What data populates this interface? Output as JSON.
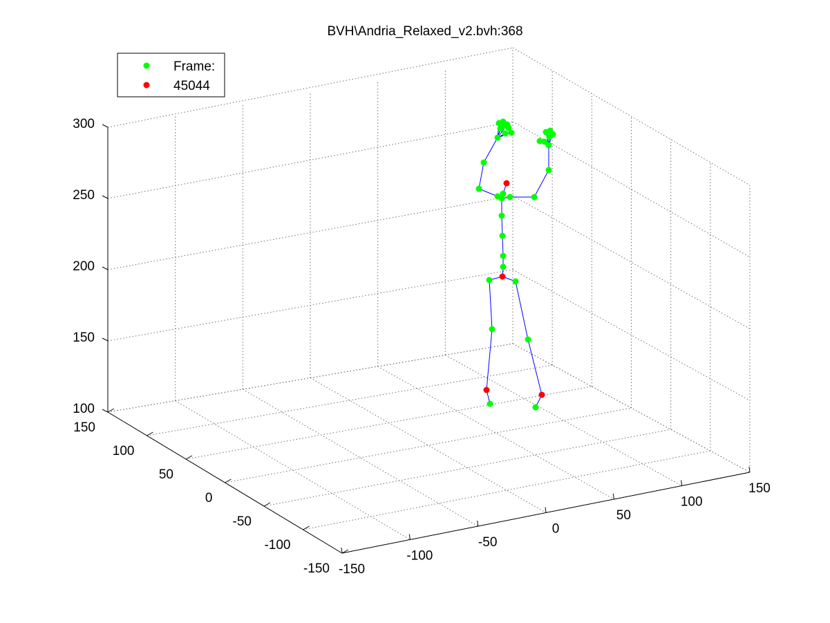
{
  "chart_data": {
    "type": "scatter",
    "title": "BVH\\Andria_Relaxed_v2.bvh:368",
    "legend": {
      "placement": "top-left",
      "entries": [
        {
          "label": "Frame:",
          "color": "#00ff00"
        },
        {
          "label": "45044",
          "color": "#ff0000"
        }
      ]
    },
    "axes": {
      "x": {
        "ticks": [
          "-150",
          "-100",
          "-50",
          "0",
          "50",
          "100",
          "150"
        ]
      },
      "y": {
        "ticks": [
          "-150",
          "-100",
          "-50",
          "0",
          "50",
          "100",
          "150"
        ]
      },
      "z": {
        "ticks": [
          "100",
          "150",
          "200",
          "250",
          "300"
        ]
      }
    },
    "grid": true,
    "colors": {
      "joint": "#00ff00",
      "highlight": "#ff0000",
      "bone": "#0000ff"
    },
    "joints": [
      {
        "id": "hip",
        "x": 727,
        "y": 400,
        "highlight": true
      },
      {
        "id": "lhip",
        "x": 708,
        "y": 405
      },
      {
        "id": "lknee",
        "x": 712,
        "y": 476
      },
      {
        "id": "lankle",
        "x": 704,
        "y": 564,
        "highlight": true
      },
      {
        "id": "ltoe",
        "x": 709,
        "y": 584
      },
      {
        "id": "rhip",
        "x": 746,
        "y": 407
      },
      {
        "id": "rknee",
        "x": 764,
        "y": 491
      },
      {
        "id": "rankle",
        "x": 784,
        "y": 571,
        "highlight": true
      },
      {
        "id": "rtoe",
        "x": 775,
        "y": 589
      },
      {
        "id": "spine1",
        "x": 728,
        "y": 386
      },
      {
        "id": "spine2",
        "x": 728,
        "y": 370
      },
      {
        "id": "spine3",
        "x": 727,
        "y": 341
      },
      {
        "id": "spine4",
        "x": 726,
        "y": 312
      },
      {
        "id": "chest",
        "x": 726,
        "y": 287
      },
      {
        "id": "neck",
        "x": 728,
        "y": 280
      },
      {
        "id": "head",
        "x": 733,
        "y": 265,
        "highlight": true
      },
      {
        "id": "lclav",
        "x": 720,
        "y": 284
      },
      {
        "id": "lshoulder",
        "x": 693,
        "y": 273
      },
      {
        "id": "lelbow",
        "x": 700,
        "y": 235
      },
      {
        "id": "lwrist",
        "x": 720,
        "y": 199
      },
      {
        "id": "lhand1",
        "x": 722,
        "y": 178
      },
      {
        "id": "lhand2",
        "x": 728,
        "y": 176
      },
      {
        "id": "lhand3",
        "x": 734,
        "y": 180
      },
      {
        "id": "lhand4",
        "x": 724,
        "y": 186
      },
      {
        "id": "lhand5",
        "x": 731,
        "y": 193
      },
      {
        "id": "lhand6",
        "x": 740,
        "y": 192
      },
      {
        "id": "lhand7",
        "x": 736,
        "y": 185
      },
      {
        "id": "lhand8",
        "x": 727,
        "y": 183
      },
      {
        "id": "rclav",
        "x": 738,
        "y": 285
      },
      {
        "id": "rshoulder",
        "x": 773,
        "y": 285
      },
      {
        "id": "relbow",
        "x": 794,
        "y": 246
      },
      {
        "id": "rwrist",
        "x": 794,
        "y": 210
      },
      {
        "id": "rhand1",
        "x": 781,
        "y": 204
      },
      {
        "id": "rhand2",
        "x": 788,
        "y": 205
      },
      {
        "id": "rhand3",
        "x": 790,
        "y": 191
      },
      {
        "id": "rhand4",
        "x": 796,
        "y": 189
      },
      {
        "id": "rhand5",
        "x": 800,
        "y": 194
      },
      {
        "id": "rhand6",
        "x": 795,
        "y": 198
      }
    ],
    "bones": [
      [
        "hip",
        "spine1"
      ],
      [
        "spine1",
        "spine2"
      ],
      [
        "spine2",
        "spine3"
      ],
      [
        "spine3",
        "spine4"
      ],
      [
        "spine4",
        "chest"
      ],
      [
        "chest",
        "neck"
      ],
      [
        "neck",
        "head"
      ],
      [
        "hip",
        "lhip"
      ],
      [
        "lhip",
        "lknee"
      ],
      [
        "lknee",
        "lankle"
      ],
      [
        "lankle",
        "ltoe"
      ],
      [
        "hip",
        "rhip"
      ],
      [
        "rhip",
        "rknee"
      ],
      [
        "rknee",
        "rankle"
      ],
      [
        "rankle",
        "rtoe"
      ],
      [
        "chest",
        "lclav"
      ],
      [
        "lclav",
        "lshoulder"
      ],
      [
        "lshoulder",
        "lelbow"
      ],
      [
        "lelbow",
        "lwrist"
      ],
      [
        "lwrist",
        "lhand1"
      ],
      [
        "lwrist",
        "lhand2"
      ],
      [
        "lwrist",
        "lhand3"
      ],
      [
        "lwrist",
        "lhand4"
      ],
      [
        "lwrist",
        "lhand5"
      ],
      [
        "lwrist",
        "lhand6"
      ],
      [
        "chest",
        "rclav"
      ],
      [
        "rclav",
        "rshoulder"
      ],
      [
        "rshoulder",
        "relbow"
      ],
      [
        "relbow",
        "rwrist"
      ],
      [
        "rwrist",
        "rhand1"
      ],
      [
        "rwrist",
        "rhand2"
      ],
      [
        "rwrist",
        "rhand3"
      ],
      [
        "rwrist",
        "rhand4"
      ],
      [
        "rwrist",
        "rhand5"
      ],
      [
        "rwrist",
        "rhand6"
      ]
    ]
  }
}
